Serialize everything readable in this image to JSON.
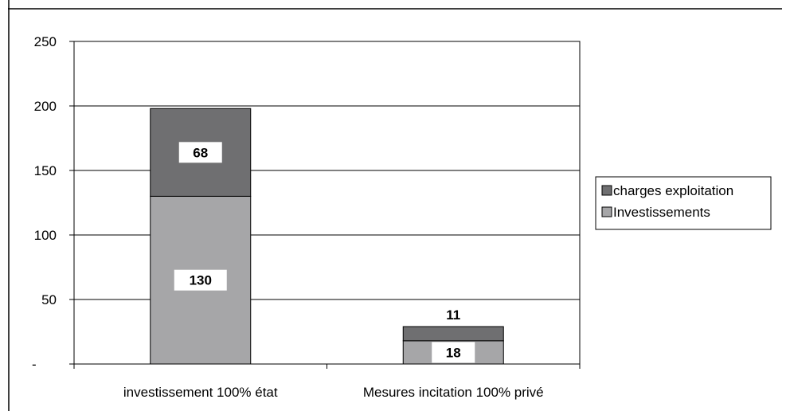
{
  "chart_data": {
    "type": "bar",
    "stacked": true,
    "title": "",
    "xlabel": "",
    "ylabel": "",
    "categories": [
      "investissement 100% état",
      "Mesures incitation 100% privé"
    ],
    "series": [
      {
        "name": "Investissements",
        "values": [
          130,
          18
        ],
        "color": "#a6a6a8"
      },
      {
        "name": "charges exploitation",
        "values": [
          68,
          11
        ],
        "color": "#6f6f71"
      }
    ],
    "ylim": [
      0,
      250
    ],
    "yticks": [
      0,
      50,
      100,
      150,
      200,
      250
    ],
    "ytick_labels": [
      "-",
      "50",
      "100",
      "150",
      "200",
      "250"
    ],
    "grid": true,
    "legend": "right",
    "legend_order": [
      "charges exploitation",
      "Investissements"
    ]
  }
}
